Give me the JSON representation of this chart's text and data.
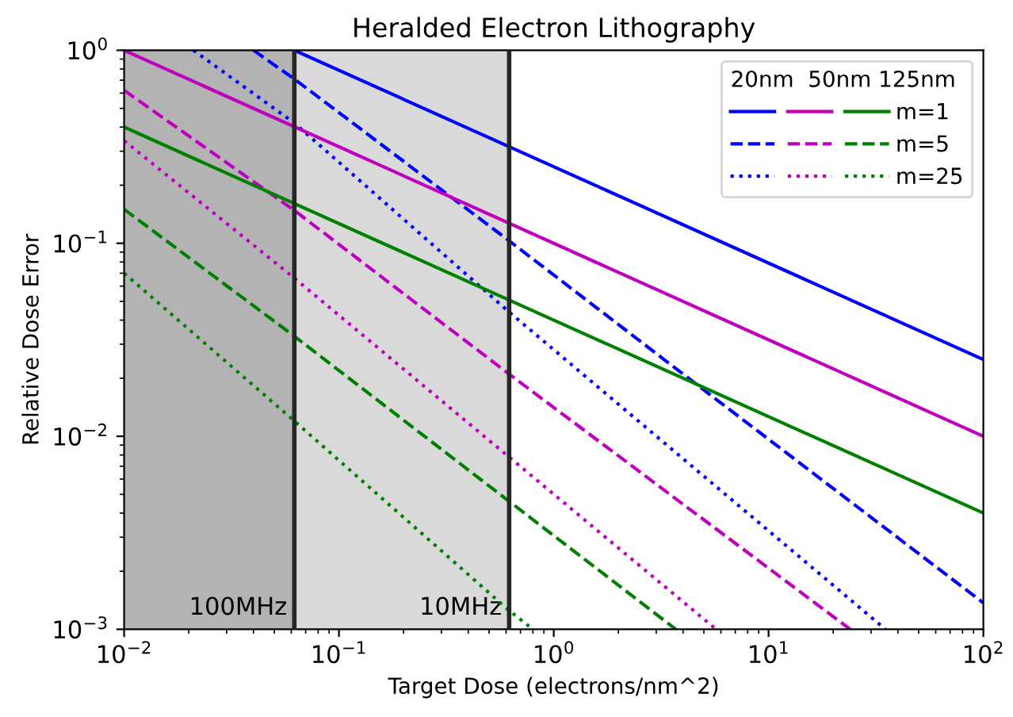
{
  "chart_data": {
    "type": "line",
    "title": "Heralded Electron Lithography",
    "xlabel": "Target Dose (electrons/nm^2)",
    "ylabel": "Relative Dose Error",
    "log": "xy",
    "xlim": [
      0.01,
      100
    ],
    "ylim": [
      0.001,
      1
    ],
    "xticks": [
      {
        "value": 0.01,
        "label": "10$^{−2}$"
      },
      {
        "value": 0.1,
        "label": "10$^{−1}$"
      },
      {
        "value": 1,
        "label": "10$^{0}$"
      },
      {
        "value": 10,
        "label": "10$^{1}$"
      },
      {
        "value": 100,
        "label": "10$^{2}$"
      }
    ],
    "yticks": [
      {
        "value": 0.001,
        "label": "10$^{−3}$"
      },
      {
        "value": 0.01,
        "label": "10$^{−2}$"
      },
      {
        "value": 0.1,
        "label": "10$^{−1}$"
      },
      {
        "value": 1,
        "label": "10$^{0}$"
      }
    ],
    "grid": false,
    "legend": "top right",
    "legend_title": "20nm  50nm 125nm",
    "bands": [
      {
        "axis": "x",
        "from": 0.01,
        "to": 0.062,
        "label": "100MHz",
        "color": "#b3b3b3"
      },
      {
        "axis": "x",
        "from": 0.062,
        "to": 0.62,
        "label": "10MHz",
        "color": "#d9d9d9"
      }
    ],
    "ref_lines": [
      {
        "axis": "x",
        "value": 0.062,
        "color": "#262626"
      },
      {
        "axis": "x",
        "value": 0.62,
        "color": "#262626"
      }
    ],
    "series": [
      {
        "color": "#0000ff",
        "line_style": "solid",
        "x": [
          0.062,
          100
        ],
        "values": [
          1,
          0.025
        ]
      },
      {
        "color": "#0000ff",
        "line_style": "dashed",
        "x": [
          0.04,
          0.062,
          0.62,
          4.5,
          100
        ],
        "values": [
          1,
          0.71,
          0.103,
          0.019,
          0.00137
        ]
      },
      {
        "color": "#0000ff",
        "line_style": "dotted",
        "x": [
          0.021,
          0.062,
          0.62,
          35
        ],
        "values": [
          1,
          0.42,
          0.044,
          0.001
        ]
      },
      {
        "color": "#bf00bf",
        "line_style": "solid",
        "x": [
          0.01,
          100
        ],
        "values": [
          1,
          0.01
        ]
      },
      {
        "color": "#bf00bf",
        "line_style": "dashed",
        "x": [
          0.01,
          0.062,
          0.62,
          24
        ],
        "values": [
          0.62,
          0.148,
          0.021,
          0.001
        ]
      },
      {
        "color": "#bf00bf",
        "line_style": "dotted",
        "x": [
          0.01,
          0.062,
          0.62,
          5.7
        ],
        "values": [
          0.34,
          0.066,
          0.0078,
          0.001
        ]
      },
      {
        "name": "m=1",
        "color": "#008000",
        "line_style": "solid",
        "x": [
          0.01,
          100
        ],
        "values": [
          0.4,
          0.004
        ]
      },
      {
        "name": "m=5",
        "color": "#008000",
        "line_style": "dashed",
        "x": [
          0.01,
          0.062,
          0.62,
          3.7
        ],
        "values": [
          0.15,
          0.033,
          0.0046,
          0.001
        ]
      },
      {
        "name": "m=25",
        "color": "#008000",
        "line_style": "dotted",
        "x": [
          0.01,
          0.062,
          0.62,
          0.8
        ],
        "values": [
          0.07,
          0.012,
          0.00125,
          0.001
        ]
      }
    ]
  }
}
